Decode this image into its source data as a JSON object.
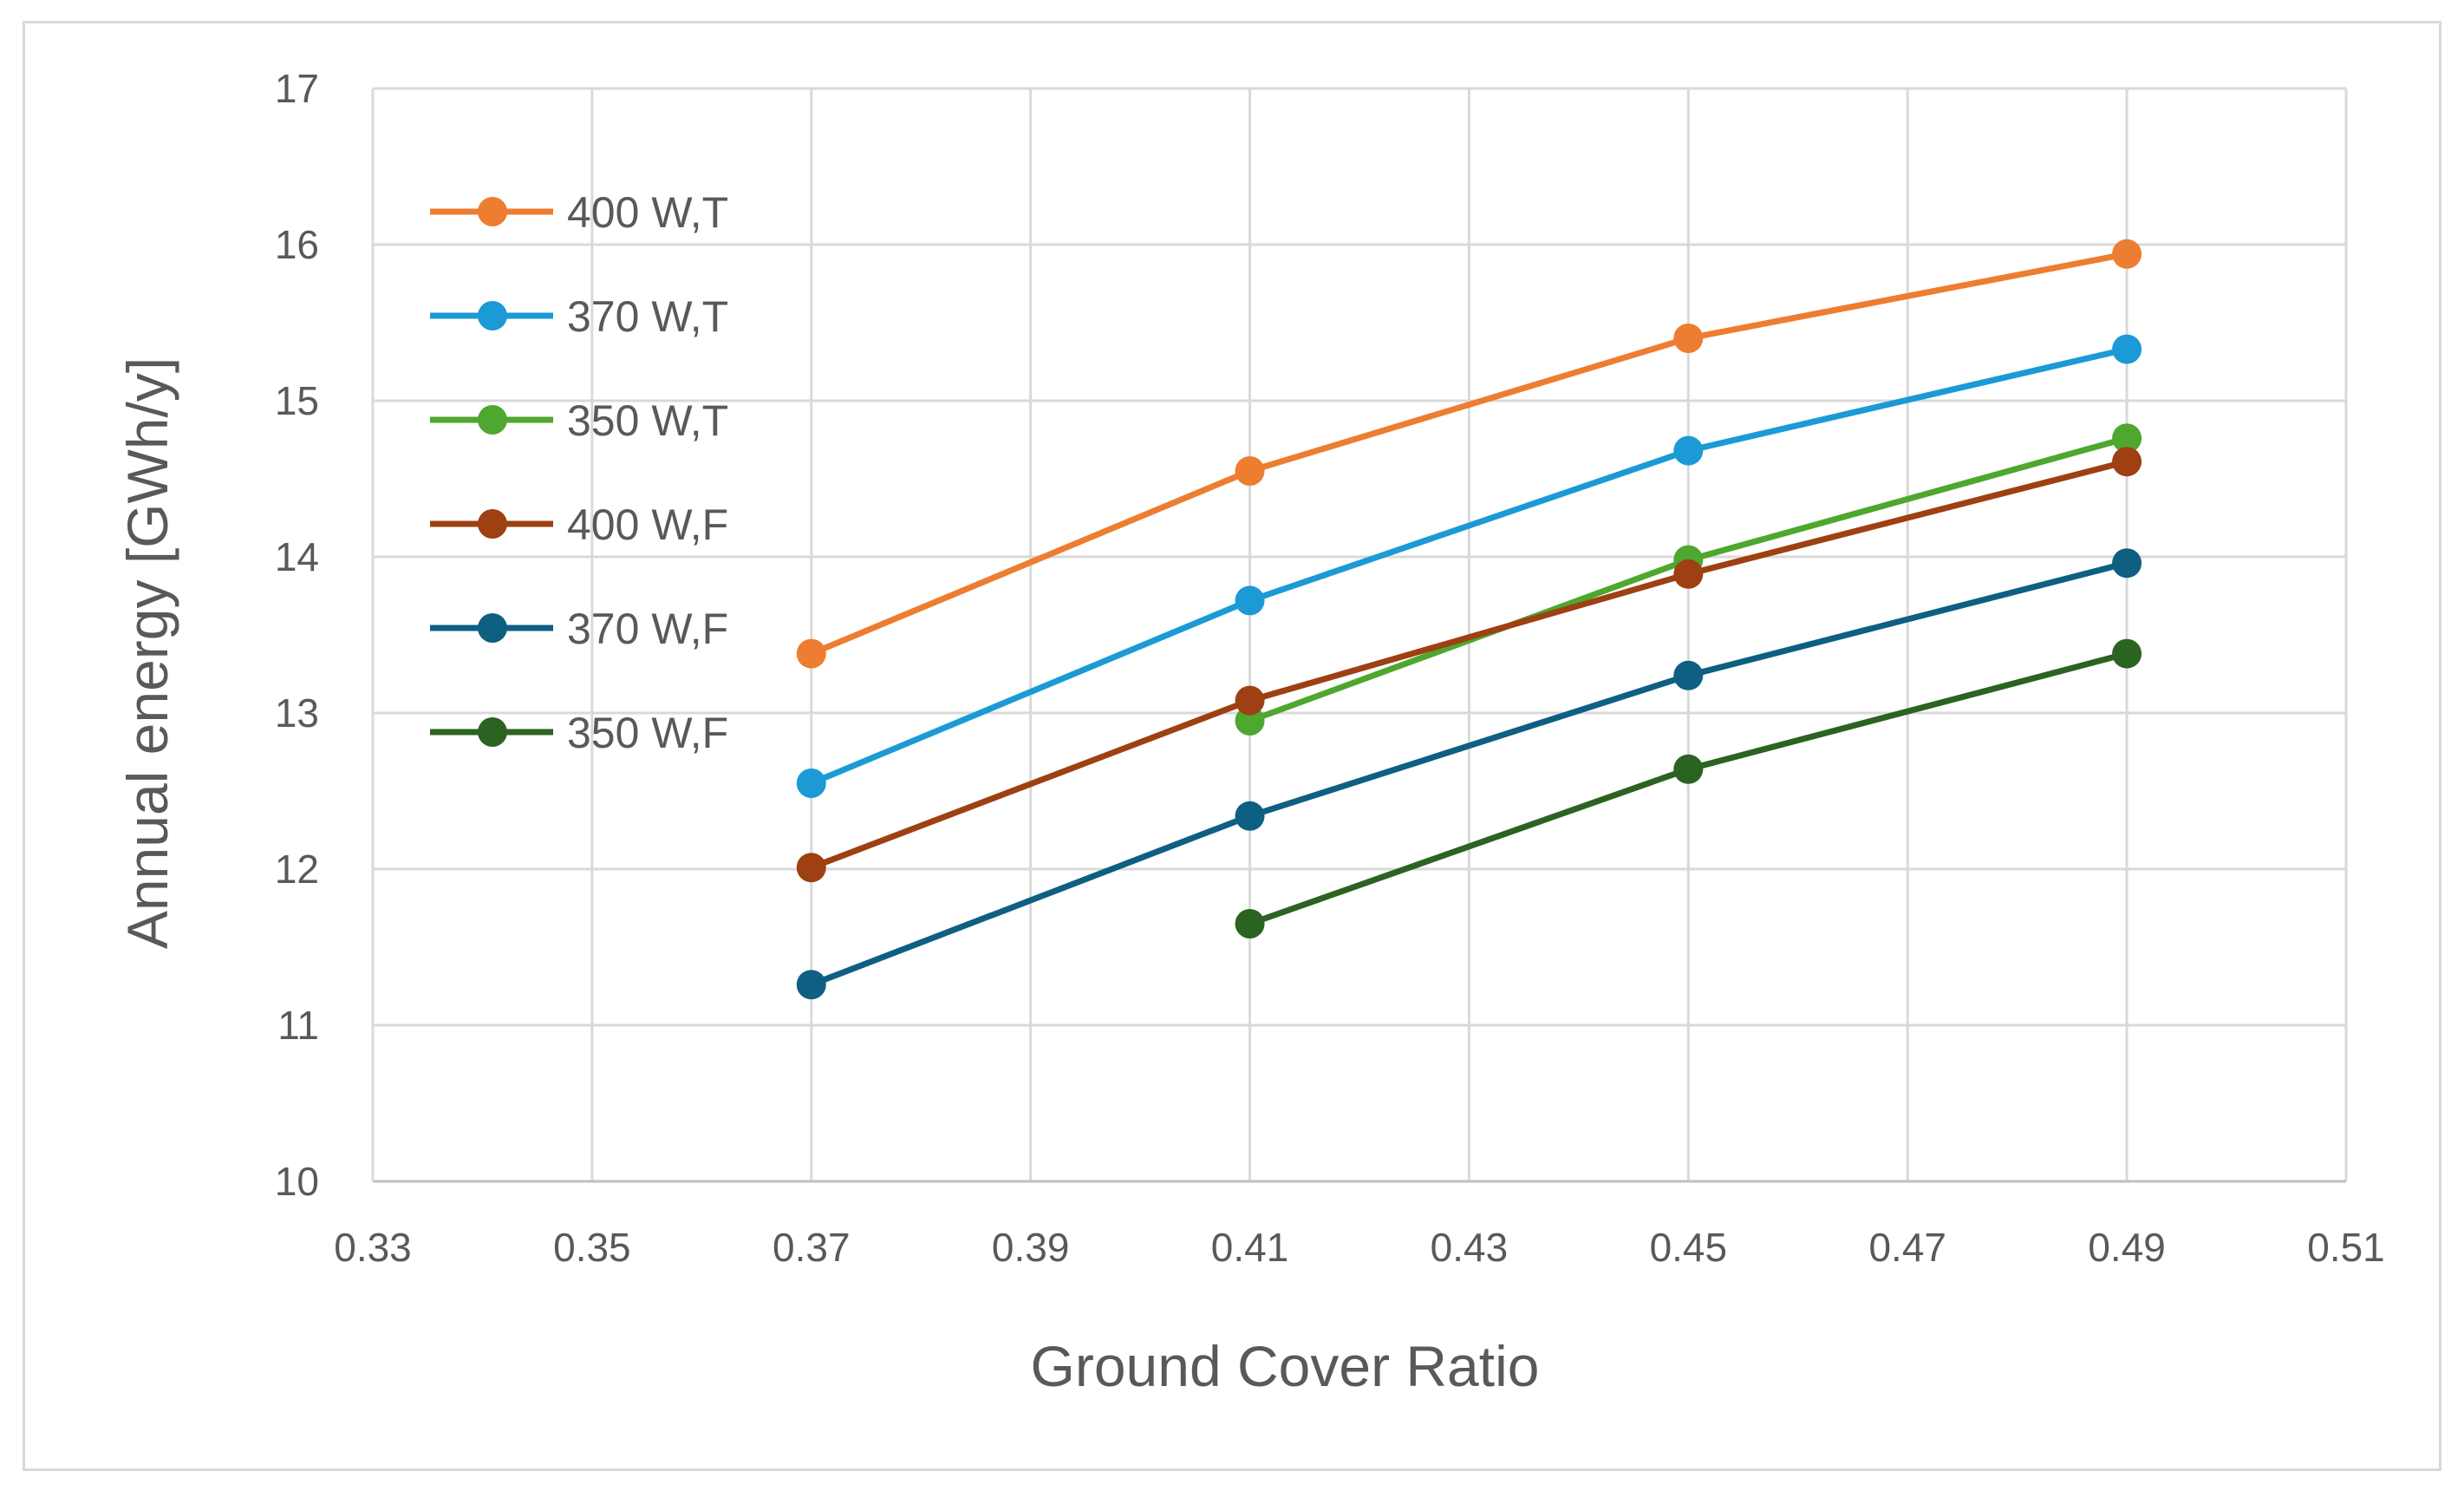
{
  "chart_data": {
    "type": "line",
    "title": "",
    "xlabel": "Ground Cover Ratio",
    "ylabel": "Annual energy [GWh/y]",
    "xlim": [
      0.33,
      0.51
    ],
    "ylim": [
      10,
      17
    ],
    "x_ticks": [
      "0.33",
      "0.35",
      "0.37",
      "0.39",
      "0.41",
      "0.43",
      "0.45",
      "0.47",
      "0.49",
      "0.51"
    ],
    "y_ticks": [
      "10",
      "11",
      "12",
      "13",
      "14",
      "15",
      "16",
      "17"
    ],
    "grid": true,
    "legend_position": "top-left",
    "series": [
      {
        "name": "400 W,T",
        "color": "#ED7D31",
        "x": [
          0.37,
          0.41,
          0.45,
          0.49
        ],
        "y": [
          13.38,
          14.55,
          15.4,
          15.94
        ]
      },
      {
        "name": "370 W,T",
        "color": "#1B9AD6",
        "x": [
          0.37,
          0.41,
          0.45,
          0.49
        ],
        "y": [
          12.55,
          13.72,
          14.68,
          15.33
        ]
      },
      {
        "name": "350 W,T",
        "color": "#4EA72E",
        "x": [
          0.41,
          0.45,
          0.49
        ],
        "y": [
          12.95,
          13.98,
          14.76
        ]
      },
      {
        "name": "400 W,F",
        "color": "#9E4012",
        "x": [
          0.37,
          0.41,
          0.45,
          0.49
        ],
        "y": [
          12.01,
          13.08,
          13.89,
          14.61
        ]
      },
      {
        "name": "370 W,F",
        "color": "#0E5F82",
        "x": [
          0.37,
          0.41,
          0.45,
          0.49
        ],
        "y": [
          11.26,
          12.34,
          13.24,
          13.96
        ]
      },
      {
        "name": "350 W,F",
        "color": "#2B6321",
        "x": [
          0.41,
          0.45,
          0.49
        ],
        "y": [
          11.65,
          12.64,
          13.38
        ]
      }
    ]
  }
}
